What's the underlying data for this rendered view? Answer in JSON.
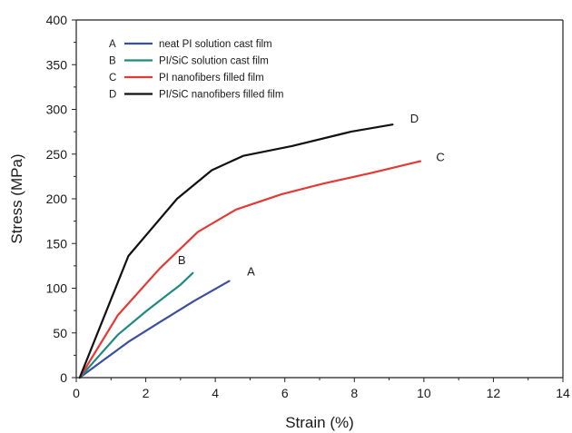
{
  "chart_data": {
    "type": "line",
    "xlabel": "Strain (%)",
    "ylabel": "Stress (MPa)",
    "xlim": [
      0,
      14
    ],
    "ylim": [
      0,
      400
    ],
    "xticks": [
      0,
      2,
      4,
      6,
      8,
      10,
      12,
      14
    ],
    "yticks": [
      0,
      50,
      100,
      150,
      200,
      250,
      300,
      350,
      400
    ],
    "grid": false,
    "legend_position": "top-left",
    "series": [
      {
        "key": "A",
        "name": "neat PI solution cast film",
        "color": "#3a4fa0",
        "label": "A",
        "x": [
          0.1,
          0.8,
          1.5,
          2.4,
          3.4,
          4.4
        ],
        "y": [
          0,
          20,
          40,
          62,
          86,
          108
        ]
      },
      {
        "key": "B",
        "name": "PI/SiC solution cast film",
        "color": "#1f8a80",
        "label": "B",
        "x": [
          0.1,
          0.6,
          1.2,
          2.0,
          2.6,
          3.0,
          3.35
        ],
        "y": [
          0,
          22,
          48,
          74,
          92,
          104,
          117
        ]
      },
      {
        "key": "C",
        "name": "PI nanofibers filled film",
        "color": "#e53935",
        "label": "C",
        "x": [
          0.1,
          1.2,
          2.4,
          3.5,
          4.6,
          5.9,
          7.1,
          8.5,
          9.9
        ],
        "y": [
          0,
          70,
          122,
          163,
          188,
          205,
          217,
          229,
          242
        ]
      },
      {
        "key": "D",
        "name": "PI/SiC nanofibers filled film",
        "color": "#111111",
        "label": "D",
        "x": [
          0.1,
          1.5,
          2.9,
          3.9,
          4.8,
          6.2,
          7.9,
          9.1
        ],
        "y": [
          0,
          136,
          200,
          232,
          248,
          259,
          275,
          283
        ]
      }
    ]
  }
}
